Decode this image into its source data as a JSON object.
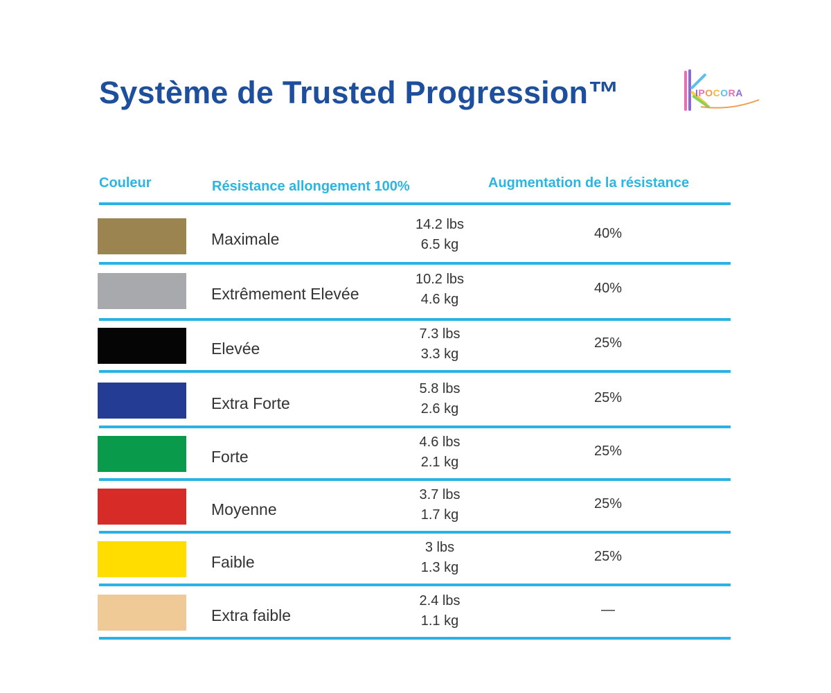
{
  "title": "Système de Trusted Progression™",
  "logo": {
    "text": "IPOCORA",
    "stroke_colors": [
      "#e86fb6",
      "#8a6bd6",
      "#5bc0eb",
      "#f7d046",
      "#8ad05a",
      "#f29b4b"
    ]
  },
  "table": {
    "headers": {
      "color": "Couleur",
      "resistance": "Résistance allongement 100%",
      "increase": "Augmentation de la résistance"
    },
    "rows": [
      {
        "swatch": "#9c8450",
        "name": "Maximale",
        "lbs": "14.2 lbs",
        "kg": "6.5 kg",
        "increase": "40%"
      },
      {
        "swatch": "#a7a9ac",
        "name": "Extrêmement Elevée",
        "lbs": "10.2 lbs",
        "kg": "4.6 kg",
        "increase": "40%"
      },
      {
        "swatch": "#050505",
        "name": "Elevée",
        "lbs": "7.3 lbs",
        "kg": "3.3 kg",
        "increase": "25%"
      },
      {
        "swatch": "#243c93",
        "name": "Extra Forte",
        "lbs": "5.8 lbs",
        "kg": "2.6 kg",
        "increase": "25%"
      },
      {
        "swatch": "#0a9a4c",
        "name": "Forte",
        "lbs": "4.6 lbs",
        "kg": "2.1 kg",
        "increase": "25%"
      },
      {
        "swatch": "#d62b27",
        "name": "Moyenne",
        "lbs": "3.7 lbs",
        "kg": "1.7 kg",
        "increase": "25%"
      },
      {
        "swatch": "#ffdd00",
        "name": "Faible",
        "lbs": "3 lbs",
        "kg": "1.3 kg",
        "increase": "25%"
      },
      {
        "swatch": "#efc996",
        "name": "Extra faible",
        "lbs": "2.4 lbs",
        "kg": "1.1 kg",
        "increase": "—"
      }
    ]
  },
  "colors": {
    "title": "#1d4f9c",
    "accent": "#29b3e4"
  }
}
